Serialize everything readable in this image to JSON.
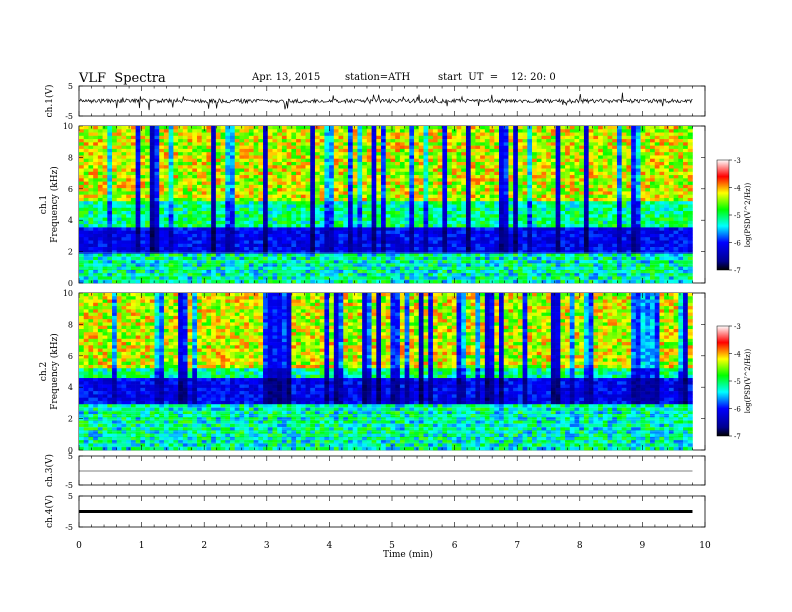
{
  "header": {
    "title": "VLF  Spectra",
    "date": "Apr. 13, 2015",
    "station": "station=ATH",
    "start": "start  UT  =    12: 20: 0"
  },
  "chart_data": [
    {
      "type": "line",
      "ylabel": "ch.1(V)",
      "ylim": [
        -5,
        5
      ],
      "yticks": [
        "5",
        "-5"
      ]
    },
    {
      "type": "heatmap",
      "ylabel_top": "ch.1",
      "ylabel": "Frequency  (kHz)",
      "ylim": [
        0,
        10
      ],
      "yticks": [
        "0",
        "2",
        "4",
        "6",
        "8",
        "10"
      ],
      "colorbar": {
        "label": "log(PSD(V^2/Hz))",
        "range": [
          -7,
          -3
        ],
        "ticks": [
          "-3",
          "-4",
          "-5",
          "-6",
          "-7"
        ]
      }
    },
    {
      "type": "heatmap",
      "ylabel_top": "ch.2",
      "ylabel": "Frequency  (kHz)",
      "ylim": [
        0,
        10
      ],
      "yticks": [
        "0",
        "2",
        "4",
        "6",
        "8",
        "10"
      ],
      "colorbar": {
        "label": "log(PSD(V^2/Hz))",
        "range": [
          -7,
          -3
        ],
        "ticks": [
          "-3",
          "-4",
          "-5",
          "-6",
          "-7"
        ]
      }
    },
    {
      "type": "line",
      "ylabel": "ch.3(V)",
      "ylim": [
        -5,
        5
      ],
      "yticks": [
        "5",
        "-5"
      ]
    },
    {
      "type": "line",
      "ylabel": "ch.4(V)",
      "ylim": [
        -5,
        5
      ],
      "yticks": [
        "5",
        "-5"
      ]
    }
  ],
  "x_axis": {
    "label": "Time  (min)",
    "xlim": [
      0,
      10
    ],
    "ticks": [
      "0",
      "1",
      "2",
      "3",
      "4",
      "5",
      "6",
      "7",
      "8",
      "9",
      "10"
    ],
    "data_end": 9.8
  }
}
